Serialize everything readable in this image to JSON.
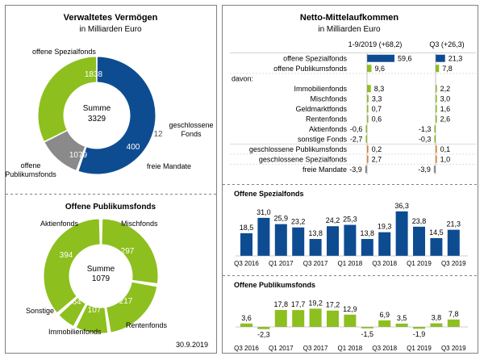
{
  "colors": {
    "blue": "#0E4C92",
    "green": "#8DBF1F",
    "grey": "#8A8A8A",
    "orange": "#E87722",
    "border": "#808080",
    "text": "#222222"
  },
  "aum": {
    "title": "Verwaltetes Vermögen",
    "subtitle": "in Milliarden Euro",
    "center_label": "Summe",
    "center_value": "3329"
  },
  "fonds": {
    "title": "Offene Publikumsfonds",
    "center_label": "Summe",
    "center_value": "1079",
    "date": "30.9.2019"
  },
  "netto": {
    "title": "Netto-Mittelaufkommen",
    "subtitle": "in Milliarden Euro",
    "col1_header": "1-9/2019 (+68,2)",
    "col2_header": "Q3 (+26,3)"
  },
  "spezial_panel": {
    "title": "Offene Spezialfonds"
  },
  "publikum_panel": {
    "title": "Offene Publikumsfonds"
  },
  "chart_data": [
    {
      "type": "pie",
      "title": "Verwaltetes Vermögen",
      "subtitle": "in Milliarden Euro",
      "total": 3329,
      "slices": [
        {
          "label": "offene Spezialfonds",
          "value": 1838,
          "display": "1838",
          "color": "#0E4C92"
        },
        {
          "label": "geschlossene Fonds",
          "value": 12,
          "display": "12",
          "color": "#E87722"
        },
        {
          "label": "freie Mandate",
          "value": 400,
          "display": "400",
          "color": "#8A8A8A"
        },
        {
          "label": "offene Publikumsfonds",
          "value": 1079,
          "display": "1079",
          "color": "#8DBF1F"
        }
      ]
    },
    {
      "type": "pie",
      "title": "Offene Publikumsfonds",
      "total": 1079,
      "date": "30.9.2019",
      "slices": [
        {
          "label": "Mischfonds",
          "value": 297,
          "display": "297",
          "color": "#8DBF1F"
        },
        {
          "label": "Rentenfonds",
          "value": 217,
          "display": "217",
          "color": "#8DBF1F"
        },
        {
          "label": "Immobilienfonds",
          "value": 107,
          "display": "107",
          "color": "#8DBF1F"
        },
        {
          "label": "Sonstige",
          "value": 64,
          "display": "64",
          "color": "#8DBF1F"
        },
        {
          "label": "Aktienfonds",
          "value": 394,
          "display": "394",
          "color": "#8DBF1F"
        }
      ]
    },
    {
      "type": "bar",
      "title": "Netto-Mittelaufkommen",
      "subtitle": "in Milliarden Euro",
      "columns": [
        "1-9/2019 (+68,2)",
        "Q3 (+26,3)"
      ],
      "rows": [
        {
          "label": "offene Spezialfonds",
          "v1": 59.6,
          "t1": "59,6",
          "v2": 21.3,
          "t2": "21,3",
          "color": "#0E4C92"
        },
        {
          "label": "offene Publikumsfonds",
          "v1": 9.6,
          "t1": "9,6",
          "v2": 7.8,
          "t2": "7,8",
          "color": "#8DBF1F"
        },
        {
          "label": "davon:",
          "header": true
        },
        {
          "label": "Immobilienfonds",
          "v1": 8.3,
          "t1": "8,3",
          "v2": 2.2,
          "t2": "2,2",
          "color": "#8DBF1F"
        },
        {
          "label": "Mischfonds",
          "v1": 3.3,
          "t1": "3,3",
          "v2": 3.0,
          "t2": "3,0",
          "color": "#8DBF1F"
        },
        {
          "label": "Geldmarktfonds",
          "v1": 0.7,
          "t1": "0,7",
          "v2": 1.6,
          "t2": "1,6",
          "color": "#8DBF1F"
        },
        {
          "label": "Rentenfonds",
          "v1": 0.6,
          "t1": "0,6",
          "v2": 2.6,
          "t2": "2,6",
          "color": "#8DBF1F"
        },
        {
          "label": "Aktienfonds",
          "v1": -0.6,
          "t1": "-0,6",
          "v2": -1.3,
          "t2": "-1,3",
          "color": "#8DBF1F"
        },
        {
          "label": "sonstige Fonds",
          "v1": -2.7,
          "t1": "-2,7",
          "v2": -0.3,
          "t2": "-0,3",
          "color": "#8DBF1F"
        },
        {
          "label": "geschlossene Publikumsfonds",
          "v1": 0.2,
          "t1": "0,2",
          "v2": 0.1,
          "t2": "0,1",
          "color": "#E87722"
        },
        {
          "label": "geschlossene Spezialfonds",
          "v1": 2.7,
          "t1": "2,7",
          "v2": 1.0,
          "t2": "1,0",
          "color": "#E87722"
        },
        {
          "label": "freie Mandate",
          "v1": -3.9,
          "t1": "-3,9",
          "v2": -3.9,
          "t2": "-3,9",
          "color": "#8A8A8A"
        }
      ]
    },
    {
      "type": "bar",
      "title": "Offene Spezialfonds",
      "color": "#0E4C92",
      "values": [
        18.5,
        31.0,
        25.9,
        23.2,
        13.8,
        24.2,
        25.3,
        13.8,
        19.3,
        36.3,
        23.8,
        14.5,
        21.3
      ],
      "value_labels": [
        "18,5",
        "31,0",
        "25,9",
        "23,2",
        "13,8",
        "24,2",
        "25,3",
        "13,8",
        "19,3",
        "36,3",
        "23,8",
        "14,5",
        "21,3"
      ],
      "tick_labels": [
        "Q3 2016",
        "Q1 2017",
        "Q3 2017",
        "Q1 2018",
        "Q3 2018",
        "Q1 2019",
        "Q3 2019"
      ]
    },
    {
      "type": "bar",
      "title": "Offene Publikumsfonds",
      "color": "#8DBF1F",
      "values": [
        3.6,
        -2.3,
        17.8,
        17.7,
        19.2,
        17.2,
        12.9,
        -1.5,
        6.9,
        3.5,
        -1.9,
        3.8,
        7.8
      ],
      "value_labels": [
        "3,6",
        "-2,3",
        "17,8",
        "17,7",
        "19,2",
        "17,2",
        "12,9",
        "-1,5",
        "6,9",
        "3,5",
        "-1,9",
        "3,8",
        "7,8"
      ],
      "tick_labels": [
        "Q3 2016",
        "Q1 2017",
        "Q3 2017",
        "Q1 2018",
        "Q3 2018",
        "Q1 2019",
        "Q3 2019"
      ]
    }
  ]
}
